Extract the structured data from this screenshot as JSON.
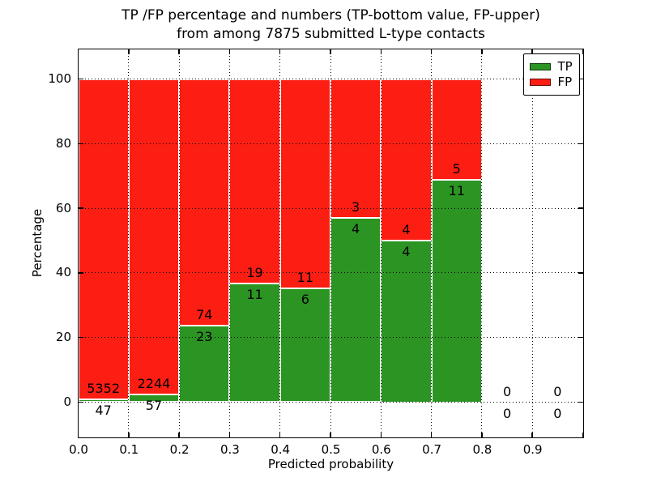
{
  "figure": {
    "title_line1": "TP /FP percentage and numbers (TP-bottom value, FP-upper)",
    "title_line2": "from among 7875 submitted L-type contacts"
  },
  "axes": {
    "xlabel": "Predicted probability",
    "ylabel": "Percentage",
    "x_tick_labels": [
      "0.0",
      "0.1",
      "0.2",
      "0.3",
      "0.4",
      "0.5",
      "0.6",
      "0.7",
      "0.8",
      "0.9"
    ],
    "y_tick_labels": [
      "0",
      "20",
      "40",
      "60",
      "80",
      "100"
    ]
  },
  "legend": {
    "items": [
      {
        "label": "TP",
        "color": "#2b9423"
      },
      {
        "label": "FP",
        "color": "#fc1d13"
      }
    ]
  },
  "colors": {
    "tp_green": "#2b9423",
    "fp_red": "#fc1d13",
    "bar_edge": "#ffffff",
    "grid": "#000000",
    "text": "#000000",
    "background": "#ffffff"
  },
  "chart_data": {
    "type": "bar",
    "stacked": true,
    "title": "TP /FP percentage and numbers (TP-bottom value, FP-upper) from among 7875 submitted L-type contacts",
    "xlabel": "Predicted probability",
    "ylabel": "Percentage",
    "total_submitted": 7875,
    "xlim": [
      0.0,
      1.0
    ],
    "ylim": [
      -11,
      109
    ],
    "grid": true,
    "legend_position": "upper right",
    "legend_entries": [
      "TP",
      "FP"
    ],
    "bin_width": 0.1,
    "bins": [
      {
        "range": [
          0.0,
          0.1
        ],
        "tp_count": 47,
        "fp_count": 5352,
        "tp_pct": 0.87,
        "fp_pct": 99.13
      },
      {
        "range": [
          0.1,
          0.2
        ],
        "tp_count": 57,
        "fp_count": 2244,
        "tp_pct": 2.48,
        "fp_pct": 97.52
      },
      {
        "range": [
          0.2,
          0.3
        ],
        "tp_count": 23,
        "fp_count": 74,
        "tp_pct": 23.71,
        "fp_pct": 76.29
      },
      {
        "range": [
          0.3,
          0.4
        ],
        "tp_count": 11,
        "fp_count": 19,
        "tp_pct": 36.67,
        "fp_pct": 63.33
      },
      {
        "range": [
          0.4,
          0.5
        ],
        "tp_count": 6,
        "fp_count": 11,
        "tp_pct": 35.29,
        "fp_pct": 64.71
      },
      {
        "range": [
          0.5,
          0.6
        ],
        "tp_count": 4,
        "fp_count": 3,
        "tp_pct": 57.14,
        "fp_pct": 42.86
      },
      {
        "range": [
          0.6,
          0.7
        ],
        "tp_count": 4,
        "fp_count": 4,
        "tp_pct": 50.0,
        "fp_pct": 50.0
      },
      {
        "range": [
          0.7,
          0.8
        ],
        "tp_count": 11,
        "fp_count": 5,
        "tp_pct": 68.75,
        "fp_pct": 31.25
      },
      {
        "range": [
          0.8,
          0.9
        ],
        "tp_count": 0,
        "fp_count": 0,
        "tp_pct": null,
        "fp_pct": null
      },
      {
        "range": [
          0.9,
          1.0
        ],
        "tp_count": 0,
        "fp_count": 0,
        "tp_pct": null,
        "fp_pct": null
      }
    ]
  }
}
